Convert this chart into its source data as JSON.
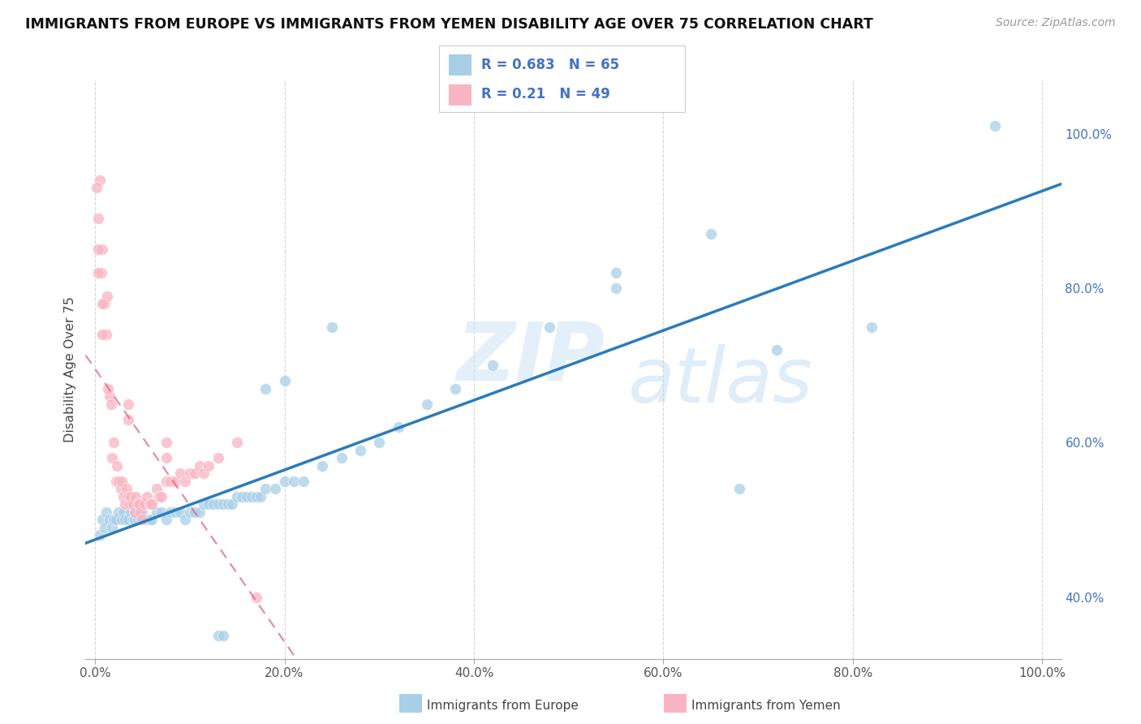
{
  "title": "IMMIGRANTS FROM EUROPE VS IMMIGRANTS FROM YEMEN DISABILITY AGE OVER 75 CORRELATION CHART",
  "source": "Source: ZipAtlas.com",
  "ylabel": "Disability Age Over 75",
  "r_europe": 0.683,
  "n_europe": 65,
  "r_yemen": 0.21,
  "n_yemen": 49,
  "xlim": [
    -0.01,
    1.02
  ],
  "ylim": [
    0.32,
    1.07
  ],
  "right_ytick_vals": [
    0.4,
    0.6,
    0.8,
    1.0
  ],
  "right_yticklabels": [
    "40.0%",
    "60.0%",
    "80.0%",
    "100.0%"
  ],
  "xtick_values": [
    0.0,
    0.2,
    0.4,
    0.6,
    0.8,
    1.0
  ],
  "xtick_labels": [
    "0.0%",
    "20.0%",
    "40.0%",
    "60.0%",
    "80.0%",
    "100.0%"
  ],
  "color_europe": "#a8cfe8",
  "color_yemen": "#f9b4c3",
  "color_trendline_europe": "#2b7bba",
  "color_trendline_yemen": "#e05080",
  "watermark_zip": "ZIP",
  "watermark_atlas": "atlas",
  "legend_label_europe": "Immigrants from Europe",
  "legend_label_yemen": "Immigrants from Yemen",
  "europe_x": [
    0.005,
    0.008,
    0.01,
    0.012,
    0.015,
    0.018,
    0.02,
    0.022,
    0.025,
    0.028,
    0.03,
    0.032,
    0.035,
    0.038,
    0.04,
    0.042,
    0.045,
    0.048,
    0.05,
    0.052,
    0.055,
    0.058,
    0.06,
    0.065,
    0.07,
    0.075,
    0.08,
    0.085,
    0.09,
    0.095,
    0.1,
    0.105,
    0.11,
    0.115,
    0.12,
    0.125,
    0.13,
    0.135,
    0.14,
    0.145,
    0.15,
    0.155,
    0.16,
    0.165,
    0.17,
    0.175,
    0.18,
    0.19,
    0.2,
    0.21,
    0.22,
    0.24,
    0.26,
    0.28,
    0.3,
    0.32,
    0.35,
    0.38,
    0.42,
    0.48,
    0.55,
    0.65,
    0.72,
    0.82,
    0.95
  ],
  "europe_y": [
    0.48,
    0.5,
    0.49,
    0.51,
    0.5,
    0.49,
    0.5,
    0.5,
    0.51,
    0.5,
    0.51,
    0.5,
    0.5,
    0.51,
    0.5,
    0.5,
    0.5,
    0.5,
    0.51,
    0.5,
    0.5,
    0.5,
    0.5,
    0.51,
    0.51,
    0.5,
    0.51,
    0.51,
    0.51,
    0.5,
    0.51,
    0.51,
    0.51,
    0.52,
    0.52,
    0.52,
    0.52,
    0.52,
    0.52,
    0.52,
    0.53,
    0.53,
    0.53,
    0.53,
    0.53,
    0.53,
    0.54,
    0.54,
    0.55,
    0.55,
    0.55,
    0.57,
    0.58,
    0.59,
    0.6,
    0.62,
    0.65,
    0.67,
    0.7,
    0.75,
    0.8,
    0.87,
    0.72,
    0.75,
    1.01
  ],
  "yemen_x": [
    0.003,
    0.005,
    0.007,
    0.008,
    0.01,
    0.012,
    0.013,
    0.015,
    0.017,
    0.018,
    0.02,
    0.022,
    0.023,
    0.025,
    0.027,
    0.028,
    0.03,
    0.032,
    0.033,
    0.035,
    0.037,
    0.038,
    0.04,
    0.042,
    0.043,
    0.045,
    0.047,
    0.048,
    0.05,
    0.052,
    0.055,
    0.058,
    0.06,
    0.065,
    0.068,
    0.07,
    0.075,
    0.08,
    0.085,
    0.09,
    0.095,
    0.1,
    0.105,
    0.11,
    0.115,
    0.12,
    0.13,
    0.15,
    0.17
  ],
  "yemen_y": [
    0.89,
    0.94,
    0.82,
    0.85,
    0.78,
    0.74,
    0.79,
    0.66,
    0.65,
    0.58,
    0.6,
    0.55,
    0.57,
    0.55,
    0.54,
    0.55,
    0.53,
    0.52,
    0.54,
    0.53,
    0.52,
    0.53,
    0.52,
    0.51,
    0.53,
    0.52,
    0.52,
    0.51,
    0.5,
    0.52,
    0.53,
    0.52,
    0.52,
    0.54,
    0.53,
    0.53,
    0.55,
    0.55,
    0.55,
    0.56,
    0.55,
    0.56,
    0.56,
    0.57,
    0.56,
    0.57,
    0.58,
    0.6,
    0.4
  ],
  "extra_blue_isolated": [
    [
      0.25,
      0.75
    ],
    [
      0.55,
      0.82
    ],
    [
      0.68,
      0.54
    ],
    [
      0.18,
      0.67
    ],
    [
      0.2,
      0.68
    ],
    [
      0.13,
      0.35
    ],
    [
      0.135,
      0.35
    ]
  ],
  "extra_pink_isolated": [
    [
      0.002,
      0.93
    ],
    [
      0.003,
      0.85
    ],
    [
      0.003,
      0.82
    ],
    [
      0.008,
      0.78
    ],
    [
      0.008,
      0.74
    ],
    [
      0.014,
      0.67
    ],
    [
      0.035,
      0.65
    ],
    [
      0.035,
      0.63
    ],
    [
      0.075,
      0.6
    ],
    [
      0.075,
      0.58
    ]
  ]
}
